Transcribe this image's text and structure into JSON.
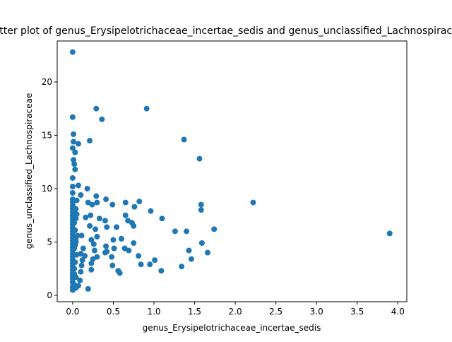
{
  "chart_data": {
    "type": "scatter",
    "title": "Scatter plot of genus_Erysipelotrichaceae_incertae_sedis and genus_unclassified_Lachnospiraceae",
    "xlabel": "genus_Erysipelotrichaceae_incertae_sedis",
    "ylabel": "genus_unclassified_Lachnospiraceae",
    "color": "#1f77b4",
    "x": [
      0,
      0,
      0.29,
      0.91,
      0.36,
      1.37,
      0.21,
      1.56,
      2.22,
      3.9,
      1.74,
      1.58,
      1.58,
      1.66,
      1.59,
      1.43,
      1.46,
      1.34,
      1.4,
      1.26,
      1.1,
      1.09,
      0.96,
      1.01,
      0.95,
      0.84,
      0.81,
      0.82,
      0.76,
      0.75,
      0.75,
      0.73,
      0.65,
      0.65,
      0.68,
      0.69,
      0.64,
      0.6,
      0.54,
      0.49,
      0.41,
      0.4,
      0.42,
      0.5,
      0.51,
      0.48,
      0.49,
      0.56,
      0.58,
      0.41,
      0.4,
      0.42,
      0.3,
      0.29,
      0.33,
      0.22,
      0.18,
      0.19,
      0.24,
      0.1,
      0.07,
      0.07,
      0.3,
      0.28,
      0.21,
      0.16,
      0.26,
      0.23,
      0.23,
      0.23,
      0.25,
      0.3,
      0.27,
      0.19,
      0.11,
      0.1,
      0.11,
      0.09,
      0.07,
      0.13,
      0.15,
      0.1,
      0.12,
      0.04,
      0.04,
      0.05,
      0.04,
      0.01,
      0.01,
      0.03,
      0,
      0.01,
      0.03,
      0.02,
      0,
      0,
      0,
      0,
      0,
      0,
      0,
      0,
      0,
      0,
      0,
      0,
      0,
      0,
      0,
      0,
      0,
      0,
      0,
      0,
      0,
      0,
      0,
      0,
      0,
      0,
      0,
      0,
      0,
      0,
      0,
      0,
      0.02,
      0.04,
      0.02,
      0.03,
      0.05,
      0.02,
      0.04,
      0.06,
      0.03,
      0.02,
      0.05,
      0.04,
      0.02,
      0.03
    ],
    "values": [
      22.8,
      16.7,
      17.5,
      17.5,
      16.5,
      14.6,
      14.5,
      12.8,
      8.7,
      5.8,
      6.2,
      8.5,
      8,
      4,
      4.9,
      4.2,
      3.4,
      2.7,
      6,
      6,
      7.2,
      2.3,
      7.9,
      3.3,
      2.9,
      2.9,
      3.7,
      8.8,
      8.3,
      4.9,
      6.5,
      6.8,
      8.7,
      7.5,
      7,
      4.2,
      4.4,
      5.3,
      6.4,
      8.5,
      9,
      7,
      6.4,
      5.2,
      4.4,
      3.6,
      2.8,
      2.3,
      2.1,
      4.6,
      4,
      4.1,
      8.7,
      9.3,
      7.2,
      7.5,
      10,
      8.7,
      8.5,
      9.4,
      10.3,
      14.2,
      5.5,
      6.2,
      6.5,
      7.3,
      4.8,
      5.2,
      2.4,
      3,
      3.4,
      3.6,
      4.2,
      0.6,
      5.6,
      3.9,
      2.8,
      1.4,
      0.9,
      4.4,
      3.7,
      2.2,
      3.3,
      7.2,
      8.1,
      8.9,
      5.2,
      15.1,
      14.4,
      13.4,
      13.8,
      12.7,
      11.8,
      12.3,
      11,
      10.2,
      9.6,
      0.5,
      0.8,
      1.2,
      1.5,
      1.8,
      2.1,
      2.4,
      2.7,
      3,
      3.3,
      3.6,
      3.9,
      4.2,
      4.5,
      4.8,
      5.1,
      5.4,
      5.7,
      6,
      6.3,
      6.6,
      6.9,
      7.2,
      7.5,
      7.8,
      8.1,
      8.4,
      8.7,
      9,
      1,
      1.7,
      2.5,
      3.1,
      3.8,
      4.4,
      5,
      5.6,
      6.1,
      6.8,
      7.6,
      0.7,
      2,
      4.7
    ],
    "xlim": [
      -0.19,
      4.11
    ],
    "ylim": [
      -0.6,
      23.84
    ],
    "xticks": [
      {
        "value": 0,
        "label": "0.0"
      },
      {
        "value": 0.5,
        "label": "0.5"
      },
      {
        "value": 1,
        "label": "1.0"
      },
      {
        "value": 1.5,
        "label": "1.5"
      },
      {
        "value": 2,
        "label": "2.0"
      },
      {
        "value": 2.5,
        "label": "2.5"
      },
      {
        "value": 3,
        "label": "3.0"
      },
      {
        "value": 3.5,
        "label": "3.5"
      },
      {
        "value": 4,
        "label": "4.0"
      }
    ],
    "yticks": [
      0,
      5,
      10,
      15,
      20
    ]
  }
}
